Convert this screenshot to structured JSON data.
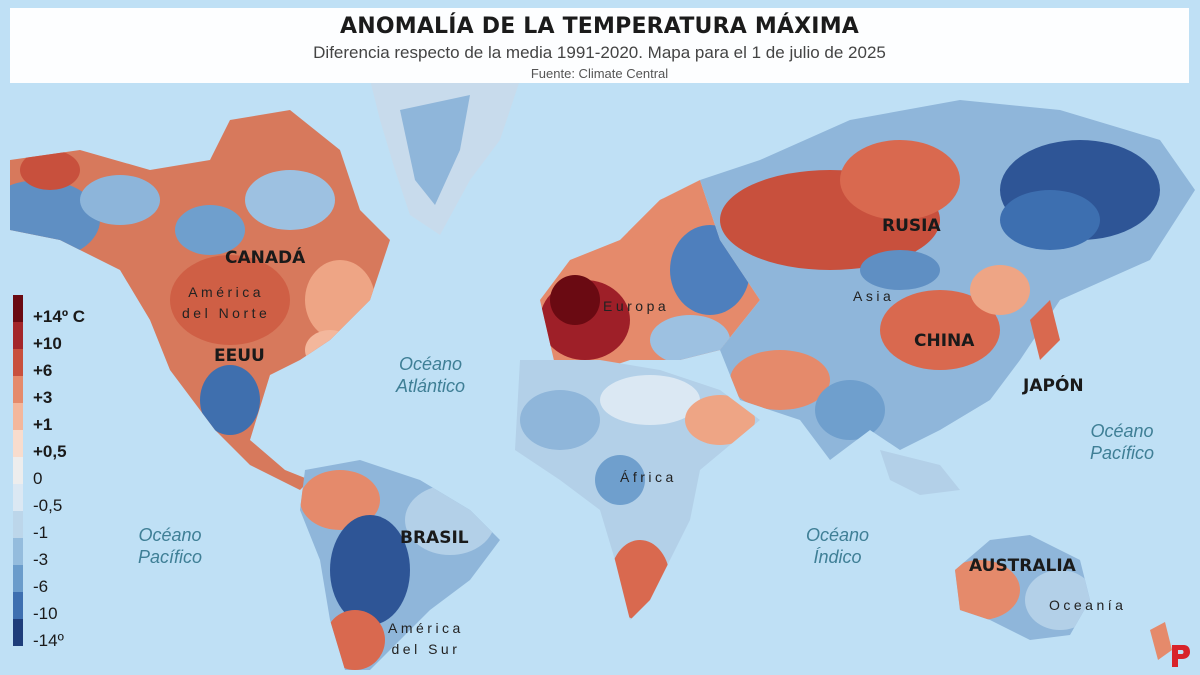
{
  "title": "ANOMALÍA DE LA TEMPERATURA MÁXIMA",
  "subtitle": "Diferencia respecto de la media 1991-2020. Mapa para el 1 de julio de 2025",
  "source": "Fuente: Climate Central",
  "legend": {
    "items": [
      {
        "label": "+14º C",
        "color": "#6a0a12",
        "bold": true
      },
      {
        "label": "+10",
        "color": "#a3262a",
        "bold": true
      },
      {
        "label": "+6",
        "color": "#c8503d",
        "bold": true
      },
      {
        "label": "+3",
        "color": "#e58a6b",
        "bold": true
      },
      {
        "label": "+1",
        "color": "#f3b79c",
        "bold": true
      },
      {
        "label": "+0,5",
        "color": "#f8dccd",
        "bold": true
      },
      {
        "label": "0",
        "color": "#ededed",
        "bold": false
      },
      {
        "label": "-0,5",
        "color": "#dbe8f3",
        "bold": false
      },
      {
        "label": "-1",
        "color": "#bcd6ea",
        "bold": false
      },
      {
        "label": "-3",
        "color": "#94bcdd",
        "bold": false
      },
      {
        "label": "-6",
        "color": "#6a9ccb",
        "bold": false
      },
      {
        "label": "-10",
        "color": "#3d6fb0",
        "bold": false
      },
      {
        "label": "-14º",
        "color": "#1e3d7a",
        "bold": false
      }
    ]
  },
  "labels": {
    "countries": {
      "canada": "CANADÁ",
      "eeuu": "EEUU",
      "brasil": "BRASIL",
      "rusia": "RUSIA",
      "china": "CHINA",
      "japon": "JAPÓN",
      "australia": "AUSTRALIA"
    },
    "continents": {
      "america_norte_1": "América",
      "america_norte_2": "del Norte",
      "america_sur_1": "América",
      "america_sur_2": "del Sur",
      "europa": "Europa",
      "asia": "Asia",
      "africa": "África",
      "oceania": "Oceanía"
    },
    "oceans": {
      "atlantico_1": "Océano",
      "atlantico_2": "Atlántico",
      "pacifico_e_1": "Océano",
      "pacifico_e_2": "Pacífico",
      "pacifico_w_1": "Océano",
      "pacifico_w_2": "Pacífico",
      "indico_1": "Océano",
      "indico_2": "Índico"
    }
  },
  "colors": {
    "ocean": "#bfe0f5",
    "warm_strong": "#a3262a",
    "warm": "#d9694f",
    "warm_light": "#eea585",
    "cool_light": "#b3d0e8",
    "cool": "#6f9fcd",
    "cool_strong": "#2e5596",
    "logo": "#d8232a"
  }
}
